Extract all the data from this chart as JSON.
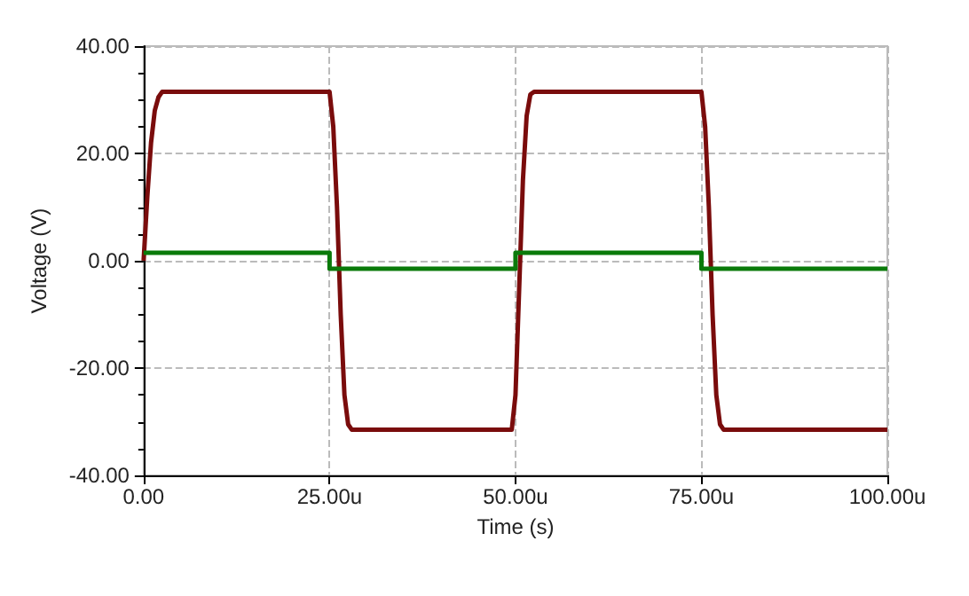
{
  "chart_data": {
    "type": "line",
    "xlabel": "Time (s)",
    "ylabel": "Voltage (V)",
    "xlim": [
      0,
      100
    ],
    "ylim": [
      -40,
      40
    ],
    "xticks": [
      {
        "value": 0,
        "label": "0.00"
      },
      {
        "value": 25,
        "label": "25.00u"
      },
      {
        "value": 50,
        "label": "50.00u"
      },
      {
        "value": 75,
        "label": "75.00u"
      },
      {
        "value": 100,
        "label": "100.00u"
      }
    ],
    "yticks": [
      {
        "value": -40,
        "label": "-40.00"
      },
      {
        "value": -20,
        "label": "-20.00"
      },
      {
        "value": 0,
        "label": "0.00"
      },
      {
        "value": 20,
        "label": "20.00"
      },
      {
        "value": 40,
        "label": "40.00"
      }
    ],
    "grid": true,
    "series": [
      {
        "color": "#7a0c0c",
        "x": [
          0,
          0.5,
          1,
          1.5,
          2,
          2.5,
          25,
          25.5,
          26,
          26.5,
          27,
          27.5,
          28,
          49.5,
          50,
          50.5,
          51,
          51.5,
          52,
          52.5,
          75,
          75.5,
          76,
          76.5,
          77,
          77.5,
          78,
          100
        ],
        "values": [
          0,
          12,
          22,
          28,
          30.5,
          31.5,
          31.5,
          25,
          10,
          -10,
          -25,
          -30.5,
          -31.5,
          -31.5,
          -25,
          -5,
          15,
          27,
          31,
          31.5,
          31.5,
          25,
          10,
          -10,
          -25,
          -30.5,
          -31.5,
          -31.5
        ]
      },
      {
        "color": "#0a7a0a",
        "x": [
          0,
          25,
          25,
          50,
          50,
          75,
          75,
          100
        ],
        "values": [
          1.5,
          1.5,
          -1.5,
          -1.5,
          1.5,
          1.5,
          -1.5,
          -1.5
        ]
      }
    ]
  }
}
